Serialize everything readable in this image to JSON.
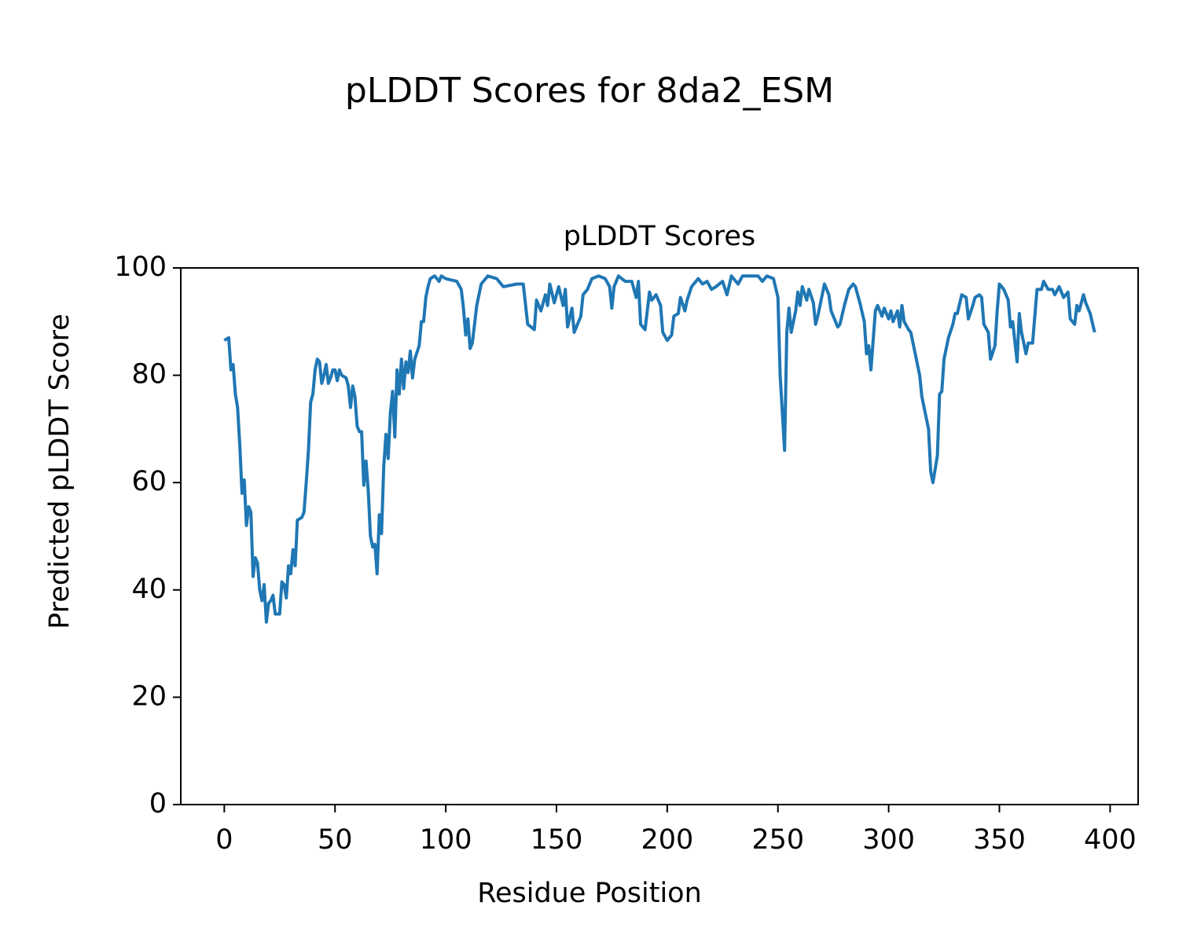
{
  "chart_data": {
    "type": "line",
    "suptitle": "pLDDT Scores for 8da2_ESM",
    "title": "pLDDT Scores",
    "xlabel": "Residue Position",
    "ylabel": "Predicted pLDDT Score",
    "xlim": [
      -19.65,
      412.65
    ],
    "ylim": [
      0,
      100
    ],
    "xticks": [
      0,
      50,
      100,
      150,
      200,
      250,
      300,
      350,
      400
    ],
    "yticks": [
      0,
      20,
      40,
      60,
      80,
      100
    ],
    "grid": false,
    "series": [
      {
        "name": "pLDDT",
        "color": "#1f77b4",
        "x": [
          0,
          2,
          3,
          4,
          5,
          6,
          7,
          8,
          9,
          10,
          11,
          12,
          13,
          14,
          15,
          16,
          17,
          18,
          19,
          20,
          21,
          22,
          23,
          25,
          26,
          27,
          28,
          29,
          30,
          31,
          32,
          33,
          35,
          36,
          37,
          38,
          39,
          40,
          41,
          42,
          43,
          44,
          45,
          46,
          47,
          48,
          49,
          50,
          51,
          52,
          53,
          55,
          56,
          57,
          58,
          59,
          60,
          61,
          62,
          63,
          64,
          65,
          66,
          67,
          68,
          69,
          70,
          71,
          72,
          73,
          74,
          75,
          76,
          77,
          78,
          79,
          80,
          81,
          82,
          83,
          84,
          85,
          86,
          88,
          89,
          90,
          91,
          92,
          93,
          95,
          96,
          97,
          98,
          100,
          105,
          107,
          108,
          109,
          110,
          111,
          112,
          114,
          116,
          119,
          123,
          126,
          132,
          135,
          137,
          140,
          141,
          143,
          145,
          146,
          147,
          149,
          151,
          153,
          154,
          155,
          157,
          158,
          159,
          161,
          162,
          164,
          166,
          169,
          172,
          174,
          175,
          176,
          178,
          181,
          184,
          186,
          187,
          188,
          190,
          192,
          193,
          195,
          197,
          198,
          200,
          202,
          203,
          205,
          206,
          208,
          209,
          211,
          214,
          216,
          218,
          220,
          222,
          225,
          227,
          229,
          232,
          234,
          238,
          241,
          243,
          245,
          248,
          250,
          251,
          253,
          254,
          255,
          256,
          258,
          259,
          260,
          261,
          263,
          264,
          266,
          267,
          268,
          271,
          273,
          274,
          277,
          278,
          280,
          282,
          284,
          285,
          287,
          289,
          290,
          291,
          292,
          294,
          295,
          297,
          298,
          300,
          301,
          302,
          304,
          305,
          306,
          307,
          309,
          310,
          312,
          314,
          315,
          317,
          318,
          319,
          320,
          322,
          323,
          324,
          325,
          327,
          329,
          330,
          331,
          333,
          335,
          336,
          338,
          339,
          341,
          342,
          343,
          345,
          346,
          348,
          349,
          350,
          352,
          354,
          355,
          356,
          358,
          359,
          360,
          362,
          363,
          365,
          366,
          367,
          369,
          370,
          372,
          374,
          375,
          377,
          379,
          381,
          382,
          384,
          385,
          386,
          388,
          389,
          391,
          393
        ],
        "values": [
          86.5,
          87,
          81,
          82,
          76.5,
          74,
          67,
          58,
          60.5,
          52,
          55.5,
          54.5,
          42.5,
          46,
          45,
          40,
          38,
          41,
          34,
          37.5,
          38,
          39,
          35.5,
          35.5,
          41.5,
          41,
          38.5,
          44.5,
          43,
          47.5,
          44.5,
          53,
          53.5,
          54.5,
          60,
          66,
          75,
          76.5,
          81,
          83,
          82.5,
          78.5,
          80,
          82,
          78.5,
          79.5,
          81,
          81,
          79,
          81,
          80,
          79.5,
          78,
          74,
          78,
          76,
          70.5,
          69.5,
          69.5,
          59.5,
          64,
          58.5,
          50,
          48,
          48.5,
          43,
          54,
          50.5,
          63,
          69,
          64.5,
          73,
          77,
          68.5,
          81,
          76.5,
          83,
          77.5,
          82.5,
          80.5,
          84.5,
          79.5,
          83,
          85.5,
          90,
          90,
          94.5,
          96.5,
          98,
          98.5,
          98,
          97.5,
          98.5,
          98,
          97.5,
          96,
          92.5,
          87.5,
          90.5,
          85,
          86,
          93,
          97,
          98.5,
          98,
          96.5,
          97,
          97,
          89.5,
          88.5,
          94,
          92,
          95,
          93,
          97,
          93.5,
          96.5,
          93,
          96,
          89,
          92.5,
          88,
          89,
          91,
          95,
          96,
          98,
          98.5,
          98,
          96.5,
          92.5,
          96.5,
          98.5,
          97.5,
          97.5,
          94.5,
          97.5,
          89.5,
          88.5,
          95.5,
          94,
          95,
          93,
          88,
          86.5,
          87.5,
          91,
          91.5,
          94.5,
          92,
          94,
          96.5,
          98,
          97,
          97.5,
          96,
          96.5,
          97.5,
          95,
          98.5,
          97,
          98.5,
          98.5,
          98.5,
          97.5,
          98.5,
          98,
          94.5,
          80,
          66,
          88,
          92.5,
          88,
          92,
          95.5,
          93,
          96.5,
          94,
          96,
          93.5,
          89.5,
          91,
          97,
          95,
          92,
          89,
          89.5,
          93,
          96,
          97,
          96.5,
          93.5,
          90,
          84,
          85.5,
          81,
          92,
          93,
          91,
          92.5,
          90.5,
          92,
          90,
          92,
          89,
          93,
          90,
          88.5,
          88,
          84,
          80,
          76,
          72,
          70,
          62,
          60,
          65,
          76.5,
          77,
          83,
          87,
          89.5,
          91.5,
          91.5,
          95,
          94.5,
          90.5,
          93,
          94.5,
          95,
          94.5,
          89.5,
          88,
          83,
          85.5,
          92,
          97,
          96,
          94,
          89,
          90,
          82.5,
          91.5,
          88,
          84,
          86,
          86,
          91,
          96,
          96,
          97.5,
          96,
          96,
          95,
          96.5,
          94.5,
          95.5,
          90.5,
          89.5,
          93,
          92,
          95,
          93.5,
          91.5,
          88
        ]
      }
    ]
  }
}
